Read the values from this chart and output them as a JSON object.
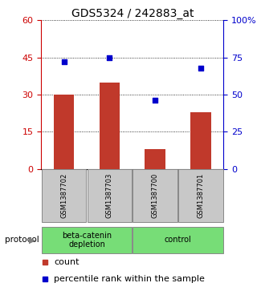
{
  "title": "GDS5324 / 242883_at",
  "samples": [
    "GSM1387702",
    "GSM1387703",
    "GSM1387700",
    "GSM1387701"
  ],
  "counts": [
    30,
    35,
    8,
    23
  ],
  "percentiles": [
    72,
    75,
    46,
    68
  ],
  "left_ylim": [
    0,
    60
  ],
  "left_yticks": [
    0,
    15,
    30,
    45,
    60
  ],
  "right_ylim": [
    0,
    100
  ],
  "right_yticks": [
    0,
    25,
    50,
    75,
    100
  ],
  "right_yticklabels": [
    "0",
    "25",
    "50",
    "75",
    "100%"
  ],
  "bar_color": "#c0392b",
  "dot_color": "#0000cc",
  "group_labels": [
    "beta-catenin\ndepletion",
    "control"
  ],
  "group_color": "#77dd77",
  "protocol_label": "protocol",
  "legend_count_label": "count",
  "legend_percentile_label": "percentile rank within the sample",
  "bg_color": "#ffffff",
  "sample_box_color": "#c8c8c8",
  "left_tick_color": "#cc0000",
  "right_tick_color": "#0000cc",
  "title_fontsize": 10,
  "axis_fontsize": 8,
  "tick_fontsize": 8,
  "legend_fontsize": 8,
  "bar_width": 0.45
}
